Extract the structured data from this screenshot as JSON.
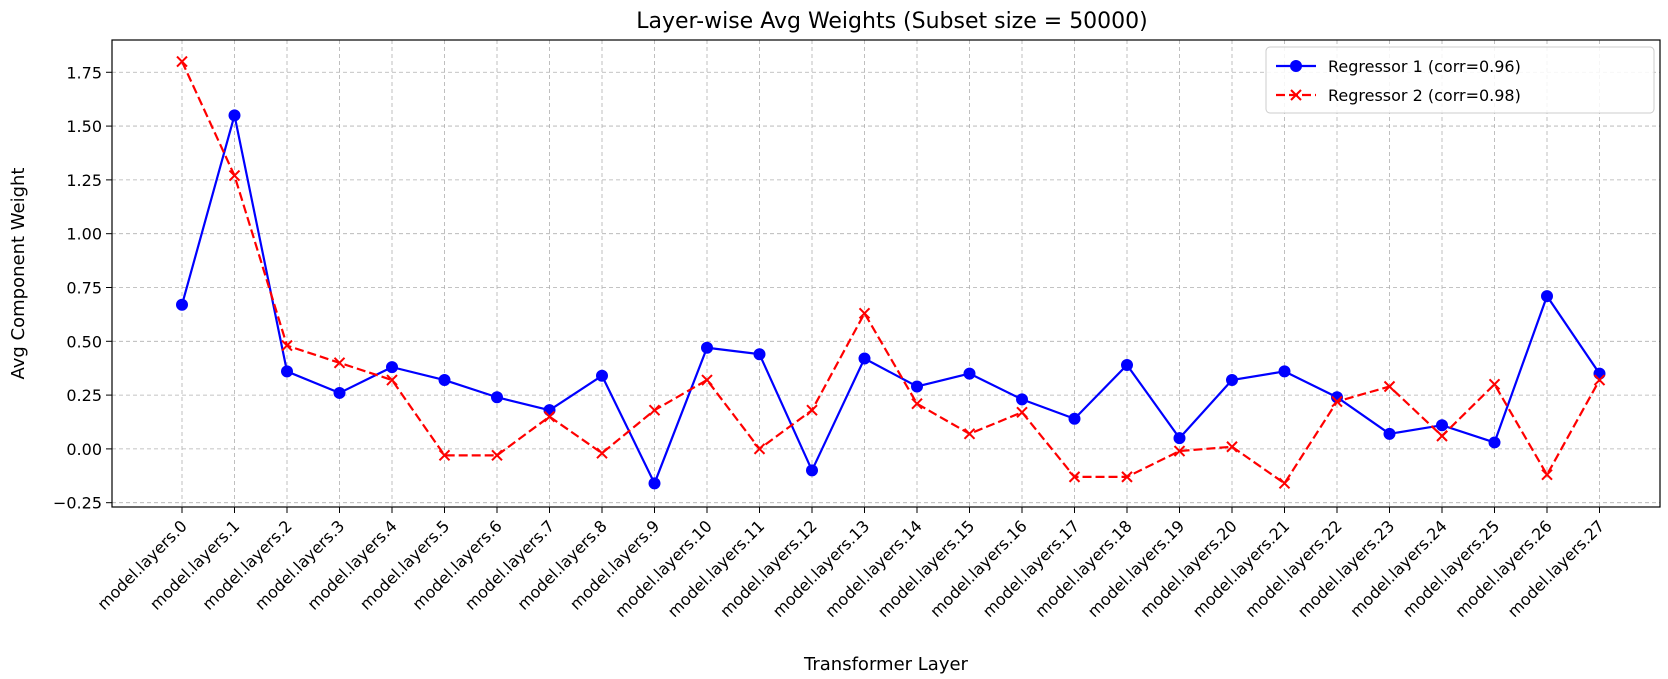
{
  "chart_data": {
    "type": "line",
    "title": "Layer-wise Avg Weights (Subset size = 50000)",
    "xlabel": "Transformer Layer",
    "ylabel": "Avg Component Weight",
    "ylim": [
      -0.27,
      1.9
    ],
    "yticks": [
      -0.25,
      0.0,
      0.25,
      0.5,
      0.75,
      1.0,
      1.25,
      1.5,
      1.75
    ],
    "ytick_labels": [
      "−0.25",
      "0.00",
      "0.25",
      "0.50",
      "0.75",
      "1.00",
      "1.25",
      "1.50",
      "1.75"
    ],
    "grid": true,
    "legend_position": "top-right",
    "categories": [
      "model.layers.0",
      "model.layers.1",
      "model.layers.2",
      "model.layers.3",
      "model.layers.4",
      "model.layers.5",
      "model.layers.6",
      "model.layers.7",
      "model.layers.8",
      "model.layers.9",
      "model.layers.10",
      "model.layers.11",
      "model.layers.12",
      "model.layers.13",
      "model.layers.14",
      "model.layers.15",
      "model.layers.16",
      "model.layers.17",
      "model.layers.18",
      "model.layers.19",
      "model.layers.20",
      "model.layers.21",
      "model.layers.22",
      "model.layers.23",
      "model.layers.24",
      "model.layers.25",
      "model.layers.26",
      "model.layers.27"
    ],
    "series": [
      {
        "name": "Regressor 1 (corr=0.96)",
        "color": "#0000ff",
        "line_style": "solid",
        "marker": "circle",
        "values": [
          0.67,
          1.55,
          0.36,
          0.26,
          0.38,
          0.32,
          0.24,
          0.18,
          0.34,
          -0.16,
          0.47,
          0.44,
          -0.1,
          0.42,
          0.29,
          0.35,
          0.23,
          0.14,
          0.39,
          0.05,
          0.32,
          0.36,
          0.24,
          0.07,
          0.11,
          0.03,
          0.71,
          0.35
        ]
      },
      {
        "name": "Regressor 2 (corr=0.98)",
        "color": "#ff0000",
        "line_style": "dashed",
        "marker": "x",
        "values": [
          1.8,
          1.27,
          0.48,
          0.4,
          0.32,
          -0.03,
          -0.03,
          0.15,
          -0.02,
          0.18,
          0.32,
          0.0,
          0.18,
          0.63,
          0.21,
          0.07,
          0.17,
          -0.13,
          -0.13,
          -0.01,
          0.01,
          -0.16,
          0.22,
          0.29,
          0.06,
          0.3,
          -0.12,
          0.32
        ]
      }
    ]
  }
}
